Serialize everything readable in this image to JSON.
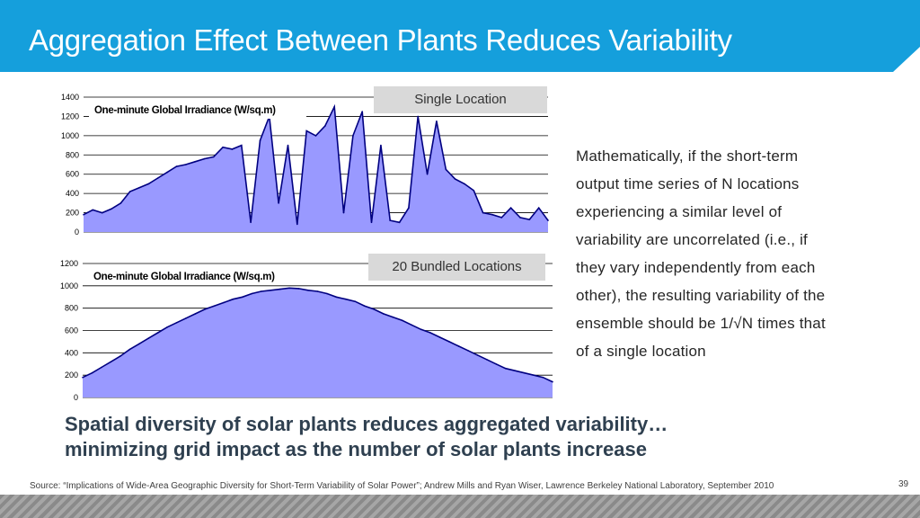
{
  "slide": {
    "title": "Aggregation Effect Between Plants Reduces Variability",
    "page_number": "39"
  },
  "paragraph": {
    "lines": [
      "Mathematically, if the short-term",
      "output time series of N locations",
      "experiencing a similar level of",
      "variability are uncorrelated (i.e., if",
      "they vary independently from each",
      "other), the resulting variability of the",
      "ensemble should be 1/√N times that",
      "of a single location"
    ]
  },
  "conclusion": {
    "line1": "Spatial diversity of solar plants reduces aggregated variability…",
    "line2": "minimizing grid impact as the number of solar plants increase"
  },
  "source": "Source: “Implications of Wide-Area Geographic Diversity for Short-Term Variability of Solar Power”; Andrew Mills and Ryan Wiser, Lawrence Berkeley National Laboratory, September 2010",
  "colors": {
    "header_blue": "#159fdc",
    "fill": "#9999ff",
    "outline": "#000080",
    "tag_bg": "#d9d9d9"
  },
  "chart_data": [
    {
      "type": "area",
      "title": "One-minute Global Irradiance (W/sq.m)",
      "label_box": "Single Location",
      "ylim": [
        0,
        1400
      ],
      "yticks": [
        0,
        200,
        400,
        600,
        800,
        1000,
        1200,
        1400
      ],
      "grid": true,
      "x": [
        0,
        2,
        4,
        6,
        8,
        10,
        12,
        14,
        16,
        18,
        20,
        22,
        24,
        26,
        28,
        30,
        32,
        34,
        36,
        38,
        40,
        42,
        44,
        46,
        48,
        50,
        52,
        54,
        56,
        58,
        60,
        62,
        64,
        66,
        68,
        70,
        72,
        74,
        76,
        78,
        80,
        82,
        84,
        86,
        88,
        90,
        92,
        94,
        96,
        98,
        100
      ],
      "values": [
        180,
        230,
        200,
        240,
        300,
        420,
        460,
        500,
        560,
        620,
        680,
        700,
        730,
        760,
        780,
        880,
        860,
        900,
        100,
        950,
        1200,
        300,
        900,
        80,
        1050,
        1000,
        1100,
        1300,
        200,
        1000,
        1250,
        100,
        900,
        120,
        100,
        250,
        1200,
        600,
        1150,
        650,
        550,
        500,
        430,
        200,
        180,
        150,
        250,
        150,
        130,
        250,
        120
      ]
    },
    {
      "type": "area",
      "title": "One-minute Global Irradiance (W/sq.m)",
      "label_box": "20 Bundled Locations",
      "ylim": [
        0,
        1200
      ],
      "yticks": [
        0,
        200,
        400,
        600,
        800,
        1000,
        1200
      ],
      "grid": true,
      "x": [
        0,
        2,
        4,
        6,
        8,
        10,
        12,
        14,
        16,
        18,
        20,
        22,
        24,
        26,
        28,
        30,
        32,
        34,
        36,
        38,
        40,
        42,
        44,
        46,
        48,
        50,
        52,
        54,
        56,
        58,
        60,
        62,
        64,
        66,
        68,
        70,
        72,
        74,
        76,
        78,
        80,
        82,
        84,
        86,
        88,
        90,
        92,
        94,
        96,
        98,
        100
      ],
      "values": [
        180,
        220,
        270,
        320,
        370,
        430,
        480,
        530,
        580,
        630,
        670,
        710,
        750,
        790,
        820,
        850,
        880,
        900,
        930,
        950,
        960,
        970,
        980,
        975,
        960,
        950,
        930,
        900,
        880,
        860,
        820,
        790,
        750,
        720,
        690,
        650,
        610,
        580,
        540,
        500,
        460,
        420,
        380,
        340,
        300,
        260,
        240,
        220,
        200,
        180,
        140
      ]
    }
  ]
}
